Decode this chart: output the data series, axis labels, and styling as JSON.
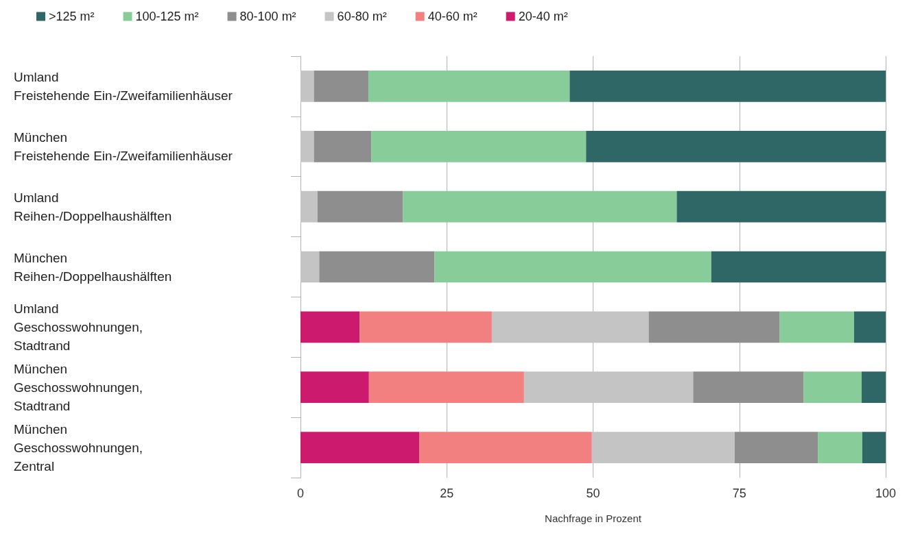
{
  "chart_data": {
    "type": "bar",
    "orientation": "horizontal",
    "stacked": true,
    "xlabel": "Nachfrage in Prozent",
    "categories": [
      "Umland\nFreistehende Ein-/Zweifamilienhäuser",
      "München\nFreistehende Ein-/Zweifamilienhäuser",
      "Umland\nReihen-/Doppelhaushälften",
      "München\nReihen-/Doppelhaushälften",
      "Umland\nGeschosswohnungen,\nStadtrand",
      "München\nGeschosswohnungen,\nStadtrand",
      "München\nGeschosswohnungen,\nZentral"
    ],
    "series": [
      {
        "name": "20-40 m²",
        "color": "#cc1a6e",
        "values": [
          null,
          null,
          null,
          null,
          10.1,
          11.7,
          20.3
        ]
      },
      {
        "name": "40-60 m²",
        "color": "#f28080",
        "values": [
          null,
          null,
          null,
          null,
          22.6,
          26.5,
          29.5
        ]
      },
      {
        "name": "60-80 m²",
        "color": "#c3c4c3",
        "values": [
          2.3,
          2.3,
          2.9,
          3.2,
          26.8,
          28.9,
          24.4
        ]
      },
      {
        "name": "80-100 m²",
        "color": "#8e8e8e",
        "values": [
          9.3,
          9.8,
          14.6,
          19.7,
          22.4,
          18.9,
          14.2
        ]
      },
      {
        "name": "100-125 m²",
        "color": "#88cc9a",
        "values": [
          34.4,
          36.7,
          46.8,
          47.3,
          12.7,
          9.9,
          7.6
        ]
      },
      {
        "name": ">125 m²",
        "color": "#2e6766",
        "values": [
          54.0,
          51.2,
          35.7,
          29.8,
          5.4,
          4.1,
          4.1
        ]
      }
    ],
    "xlim": [
      0,
      100
    ],
    "xticks": [
      0,
      25,
      50,
      75,
      100
    ],
    "grid": "x",
    "legend": "top left"
  }
}
